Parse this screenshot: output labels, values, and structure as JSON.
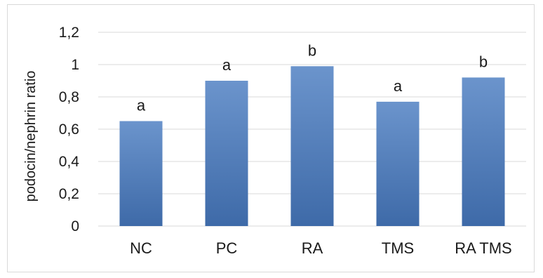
{
  "chart_data": {
    "type": "bar",
    "categories": [
      "NC",
      "PC",
      "RA",
      "TMS",
      "RA TMS"
    ],
    "values": [
      0.65,
      0.9,
      0.99,
      0.77,
      0.92
    ],
    "data_labels": [
      "a",
      "a",
      "b",
      "a",
      "b"
    ],
    "title": "",
    "xlabel": "",
    "ylabel": "podocin/nephrin ratio",
    "ylim": [
      0,
      1.2
    ],
    "yticks": [
      0,
      0.2,
      0.4,
      0.6,
      0.8,
      1,
      1.2
    ],
    "ytick_labels": [
      "0",
      "0,2",
      "0,4",
      "0,6",
      "0,8",
      "1",
      "1,2"
    ],
    "grid": true,
    "legend": "none",
    "colors": {
      "bar": "#4a78b8",
      "bar_light": "#6b94cc",
      "grid": "#d9d9d9"
    }
  }
}
